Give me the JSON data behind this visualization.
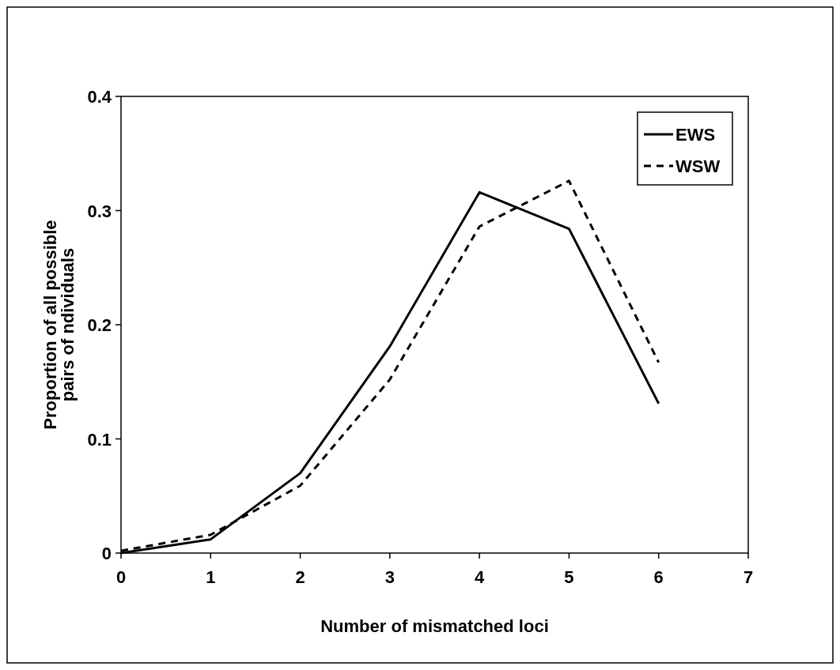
{
  "chart_data": {
    "type": "line",
    "xlabel": "Number of mismatched loci",
    "ylabel": "Proportion of all possible\npairs of ndividuals",
    "x": [
      0,
      1,
      2,
      3,
      4,
      5,
      6
    ],
    "xlim": [
      0,
      7
    ],
    "xticks": [
      0,
      1,
      2,
      3,
      4,
      5,
      6,
      7
    ],
    "ylim": [
      0,
      0.4
    ],
    "yticks": [
      0,
      0.1,
      0.2,
      0.3,
      0.4
    ],
    "grid": false,
    "legend": "top right",
    "marker": "none",
    "series": [
      {
        "name": "EWS",
        "color": "#000000",
        "line_style": "solid",
        "values": [
          0,
          0.012,
          0.07,
          0.181,
          0.316,
          0.284,
          0.131
        ]
      },
      {
        "name": "WSW",
        "color": "#000000",
        "line_style": "dashed",
        "values": [
          0.002,
          0.016,
          0.059,
          0.152,
          0.286,
          0.326,
          0.167
        ]
      }
    ]
  }
}
